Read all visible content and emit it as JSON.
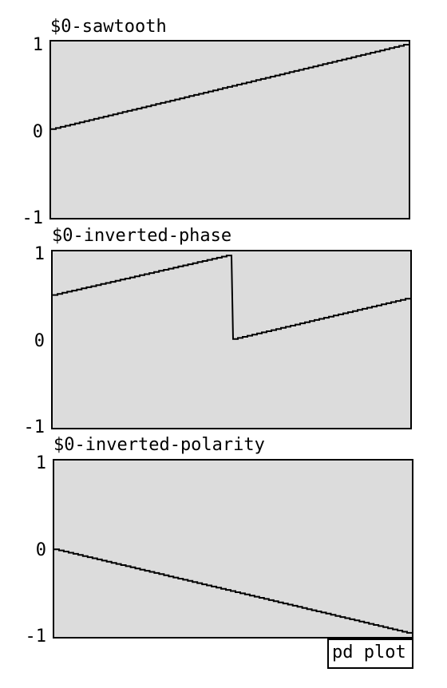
{
  "arrays": [
    {
      "name": "$0-sawtooth",
      "y_labels": {
        "top": "1",
        "mid": "0",
        "bottom": "-1"
      },
      "y_range": [
        -1,
        1
      ],
      "shape": "sawtooth",
      "start_value": 0.0,
      "end_value": 0.97
    },
    {
      "name": "$0-inverted-phase",
      "y_labels": {
        "top": "1",
        "mid": "0",
        "bottom": "-1"
      },
      "y_range": [
        -1,
        1
      ],
      "shape": "sawtooth-phase-shifted",
      "start_value": 0.5,
      "peak_value": 0.96,
      "wrap_fraction": 0.5,
      "end_value": 0.47
    },
    {
      "name": "$0-inverted-polarity",
      "y_labels": {
        "top": "1",
        "mid": "0",
        "bottom": "-1"
      },
      "y_range": [
        -1,
        1
      ],
      "shape": "inverted-sawtooth",
      "start_value": 0.0,
      "end_value": -0.96
    }
  ],
  "subpatch": {
    "label": "pd plot"
  },
  "colors": {
    "graph_background": "#dcdcdc",
    "stroke": "#000000",
    "page_background": "#ffffff"
  }
}
